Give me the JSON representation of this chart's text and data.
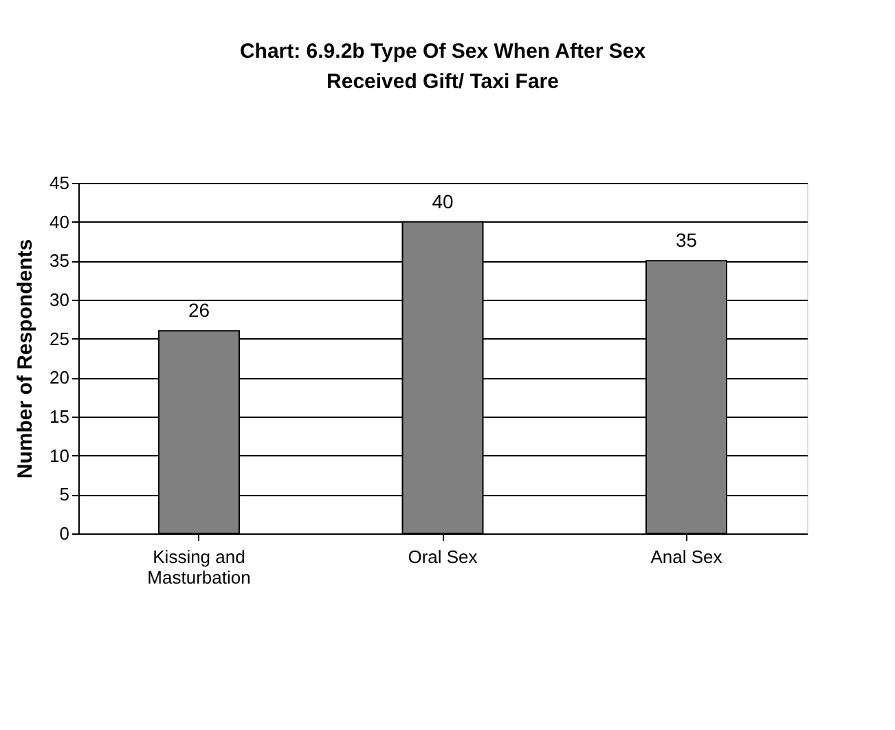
{
  "chart_data": {
    "type": "bar",
    "title": "Chart: 6.9.2b Type Of Sex When After Sex\nReceived Gift/ Taxi Fare",
    "ylabel": "Number of Respondents",
    "categories": [
      "Kissing and\nMasturbation",
      "Oral Sex",
      "Anal Sex"
    ],
    "values": [
      26,
      40,
      35
    ],
    "color": "#808080",
    "ylim": [
      0,
      45
    ],
    "yticks": [
      0,
      5,
      10,
      15,
      20,
      25,
      30,
      35,
      40,
      45
    ],
    "grid": "y",
    "data_labels": true
  }
}
